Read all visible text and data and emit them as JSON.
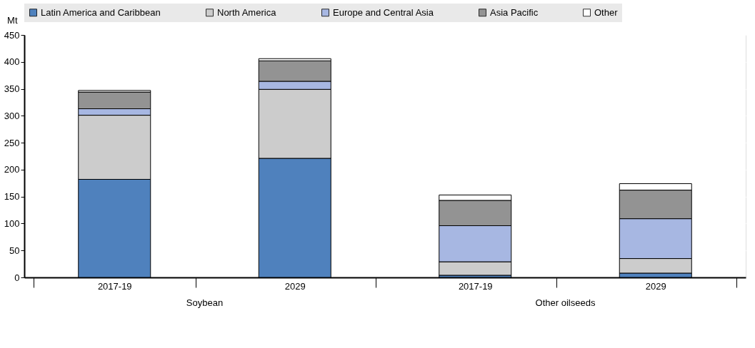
{
  "chart_data": {
    "type": "bar",
    "stacked": true,
    "ylabel": "Mt",
    "categories": [
      "2017-19",
      "2029",
      "2017-19",
      "2029"
    ],
    "annotations": [
      "Soybean",
      "Other oilseeds"
    ],
    "series": [
      {
        "name": "Latin America and Caribbean",
        "color": "#4f81bd",
        "values": [
          182,
          221,
          4,
          8
        ]
      },
      {
        "name": "North America",
        "color": "#cccccc",
        "values": [
          119,
          128,
          25,
          27
        ]
      },
      {
        "name": "Europe and Central Asia",
        "color": "#a7b7e2",
        "values": [
          12,
          15,
          67,
          74
        ]
      },
      {
        "name": "Asia Pacific",
        "color": "#939393",
        "values": [
          31,
          38,
          47,
          53
        ]
      },
      {
        "name": "Other",
        "color": "#ffffff",
        "values": [
          3,
          4,
          10,
          12
        ]
      }
    ],
    "ylim": [
      0,
      450
    ],
    "yticks": [
      0,
      50,
      100,
      150,
      200,
      250,
      300,
      350,
      400,
      450
    ],
    "grid": "y",
    "legend": "top"
  }
}
